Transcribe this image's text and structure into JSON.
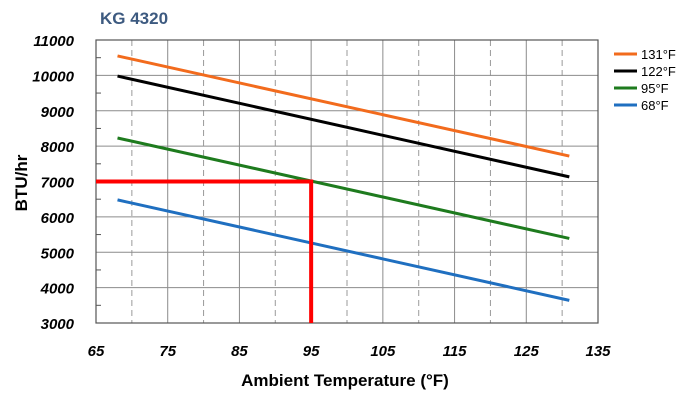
{
  "chart_data": {
    "type": "line",
    "title": "KG 4320",
    "xlabel": "Ambient Temperature (°F)",
    "ylabel": "BTU/hr",
    "xlim": [
      65,
      135
    ],
    "ylim": [
      3000,
      11000
    ],
    "xticks": [
      65,
      75,
      85,
      95,
      105,
      115,
      125,
      135
    ],
    "yticks": [
      3000,
      4000,
      5000,
      6000,
      7000,
      8000,
      9000,
      10000,
      11000
    ],
    "grid": true,
    "legend_position": "right",
    "series": [
      {
        "name": "131°F",
        "color": "#f26b1d",
        "x": [
          68,
          131
        ],
        "y": [
          10550,
          7720
        ]
      },
      {
        "name": "122°F",
        "color": "#000000",
        "x": [
          68,
          131
        ],
        "y": [
          9980,
          7130
        ]
      },
      {
        "name": "95°F",
        "color": "#1e7b1e",
        "x": [
          68,
          131
        ],
        "y": [
          8230,
          5390
        ]
      },
      {
        "name": "68°F",
        "color": "#1f6fc0",
        "x": [
          68,
          131
        ],
        "y": [
          6480,
          3640
        ]
      }
    ],
    "annotation": {
      "color": "#ff0000",
      "x": 95,
      "y": 7000,
      "x_start": 65,
      "y_end": 3000
    }
  }
}
